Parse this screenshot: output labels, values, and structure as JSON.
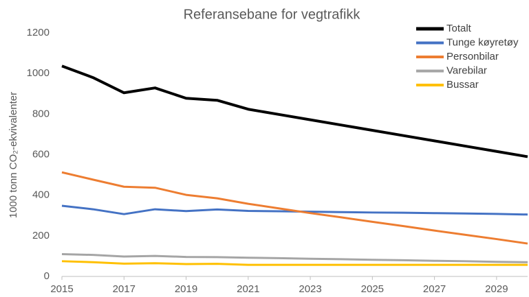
{
  "chart_data": {
    "type": "line",
    "title": "Referansebane for vegtrafikk",
    "y_label": "1000 tonn CO₂-ekvivalenter",
    "x": [
      2015,
      2016,
      2017,
      2018,
      2019,
      2020,
      2021,
      2022,
      2023,
      2024,
      2025,
      2026,
      2027,
      2028,
      2029,
      2030
    ],
    "series": [
      {
        "name": "Totalt",
        "color": "#000000",
        "width": 4,
        "values": [
          1037,
          980,
          905,
          929,
          878,
          868,
          824,
          798,
          772,
          746,
          720,
          694,
          668,
          642,
          616,
          590
        ]
      },
      {
        "name": "Tunge køyretøy",
        "color": "#4472c4",
        "width": 3,
        "values": [
          348,
          331,
          307,
          331,
          322,
          330,
          323,
          321,
          319,
          317,
          315,
          314,
          312,
          310,
          308,
          305
        ]
      },
      {
        "name": "Personbilar",
        "color": "#ed7d31",
        "width": 3,
        "values": [
          513,
          477,
          442,
          437,
          402,
          385,
          358,
          335,
          312,
          291,
          269,
          248,
          226,
          205,
          184,
          162
        ]
      },
      {
        "name": "Varebilar",
        "color": "#a5a5a5",
        "width": 3,
        "values": [
          110,
          106,
          98,
          101,
          96,
          95,
          92,
          90,
          87,
          85,
          82,
          80,
          77,
          75,
          72,
          70
        ]
      },
      {
        "name": "Bussar",
        "color": "#ffc000",
        "width": 3,
        "values": [
          75,
          70,
          63,
          65,
          61,
          62,
          57,
          57,
          57,
          57,
          57,
          57,
          57,
          57,
          57,
          57
        ]
      }
    ],
    "xlim": [
      2015,
      2030
    ],
    "xticks": [
      2015,
      2017,
      2019,
      2021,
      2023,
      2025,
      2027,
      2029
    ],
    "ylim": [
      0,
      1200
    ],
    "yticks": [
      0,
      200,
      400,
      600,
      800,
      1000,
      1200
    ],
    "grid": false,
    "legend": "top-right"
  }
}
